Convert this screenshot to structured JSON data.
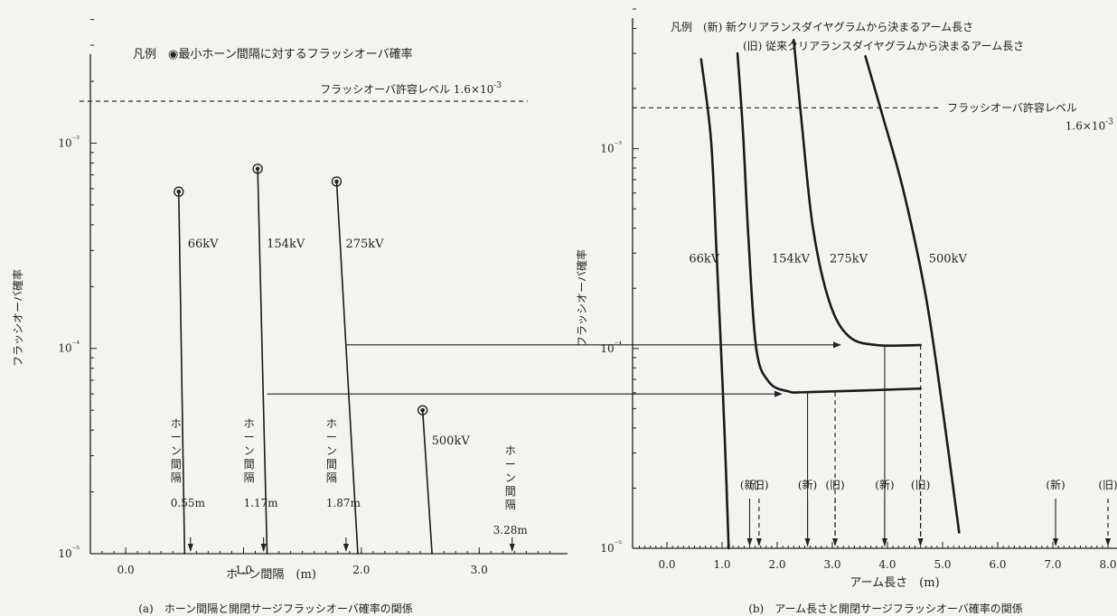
{
  "chart_data": [
    {
      "type": "scatter",
      "caption": "(a)　ホーン間隔と開閉サージフラッシオーバ確率の関係",
      "legend": "凡例　◉最小ホーン間隔に対するフラッシオーバ確率",
      "xlabel": "ホーン間隔　(m)",
      "ylabel": "フラッシオーバ確率",
      "xlim": [
        -0.3,
        3.75
      ],
      "ylim": [
        1e-05,
        0.0045
      ],
      "yscale": "log",
      "xticks": [
        "0.0",
        "1.0",
        "2.0",
        "3.0"
      ],
      "yticks": [
        "10⁻³",
        "10⁻⁴",
        "10⁻⁵"
      ],
      "threshold": {
        "label": "フラッシオーバ許容レベル 1.6×10⁻³",
        "value": 0.0016
      },
      "series": [
        {
          "name": "66kV",
          "peak": {
            "x": 0.45,
            "y": 0.00058
          },
          "base_x": 0.5,
          "min_gap": {
            "x": 0.55,
            "label": [
              "ホ",
              "ー",
              "ン",
              "間",
              "隔"
            ],
            "value": "0.55m"
          }
        },
        {
          "name": "154kV",
          "peak": {
            "x": 1.12,
            "y": 0.00075
          },
          "base_x": 1.2,
          "min_gap": {
            "x": 1.17,
            "label": [
              "ホ",
              "ー",
              "ン",
              "間",
              "隔"
            ],
            "value": "1.17m"
          }
        },
        {
          "name": "275kV",
          "peak": {
            "x": 1.79,
            "y": 0.00065
          },
          "base_x": 1.97,
          "min_gap": {
            "x": 1.87,
            "label": [
              "ホ",
              "ー",
              "ン",
              "間",
              "隔"
            ],
            "value": "1.87m"
          }
        },
        {
          "name": "500kV",
          "peak": {
            "x": 2.52,
            "y": 5e-05
          },
          "base_x": 2.6,
          "min_gap": {
            "x": 3.28,
            "label": [
              "ホ",
              "ー",
              "ン",
              "間",
              "隔"
            ],
            "value": "3.28m"
          }
        }
      ],
      "transfer_arrows": [
        {
          "from_x": 1.2,
          "y": 6e-05
        },
        {
          "from_x": 1.87,
          "y": 0.000104
        }
      ]
    },
    {
      "type": "line",
      "caption": "(b)　アーム長さと開閉サージフラッシオーバ確率の関係",
      "legend": [
        "凡例　(新) 新クリアランスダイヤグラムから決まるアーム長さ",
        "(旧) 従来クリアランスダイヤグラムから決まるアーム長さ"
      ],
      "xlabel": "アーム長さ　(m)",
      "ylabel": "フラッシオーバ確率",
      "xlim": [
        -0.6,
        8.2
      ],
      "ylim": [
        1e-05,
        0.005
      ],
      "yscale": "log",
      "xticks": [
        "0.0",
        "1.0",
        "2.0",
        "3.0",
        "4.0",
        "5.0",
        "6.0",
        "7.0",
        "8.0"
      ],
      "yticks": [
        "10⁻³",
        "10⁻⁴",
        "10⁻⁵"
      ],
      "threshold": {
        "label": [
          "フラッシオーバ許容レベル",
          "1.6×10⁻³"
        ],
        "value": 0.0016
      },
      "series": [
        {
          "name": "66kV",
          "points": [
            [
              0.62,
              0.0028
            ],
            [
              0.8,
              0.0011
            ],
            [
              0.9,
              0.0003
            ],
            [
              0.98,
              0.0001
            ],
            [
              1.05,
              3.5e-05
            ],
            [
              1.12,
              1e-05
            ]
          ]
        },
        {
          "name": "154kV",
          "points": [
            [
              1.28,
              0.003
            ],
            [
              1.38,
              0.0012
            ],
            [
              1.48,
              0.00035
            ],
            [
              1.62,
              0.0001
            ],
            [
              1.85,
              6.8e-05
            ],
            [
              2.2,
              6.1e-05
            ],
            [
              2.6,
              6.05e-05
            ],
            [
              4.6,
              6.3e-05
            ]
          ]
        },
        {
          "name": "275kV",
          "points": [
            [
              2.3,
              0.0035
            ],
            [
              2.45,
              0.0013
            ],
            [
              2.65,
              0.0004
            ],
            [
              2.95,
              0.00017
            ],
            [
              3.3,
              0.000115
            ],
            [
              3.8,
              0.000104
            ],
            [
              4.6,
              0.000104
            ]
          ]
        },
        {
          "name": "500kV",
          "points": [
            [
              3.6,
              0.0029
            ],
            [
              3.9,
              0.0015
            ],
            [
              4.3,
              0.0006
            ],
            [
              4.7,
              0.00018
            ],
            [
              5.0,
              5e-05
            ],
            [
              5.3,
              1.2e-05
            ]
          ]
        }
      ],
      "markers": [
        {
          "label": "(新)",
          "x": 1.5,
          "kind": "solid"
        },
        {
          "label": "(旧)",
          "x": 1.67,
          "kind": "dashed"
        },
        {
          "label": "(新)",
          "x": 2.55,
          "kind": "solid"
        },
        {
          "label": "(旧)",
          "x": 3.05,
          "kind": "dashed"
        },
        {
          "label": "(新)",
          "x": 3.95,
          "kind": "solid"
        },
        {
          "label": "(旧)",
          "x": 4.6,
          "kind": "dashed"
        },
        {
          "label": "(新)",
          "x": 7.05,
          "kind": "solid"
        },
        {
          "label": "(旧)",
          "x": 8.0,
          "kind": "dashed"
        }
      ],
      "drops": [
        {
          "x": 2.55,
          "y": 6.05e-05,
          "kind": "solid"
        },
        {
          "x": 3.05,
          "y": 6.05e-05,
          "kind": "dashed"
        },
        {
          "x": 3.95,
          "y": 0.000104,
          "kind": "solid"
        },
        {
          "x": 4.6,
          "y": 0.000104,
          "kind": "dashed"
        }
      ],
      "curve_labels": [
        {
          "name": "66kV",
          "x": 0.4,
          "y": 0.00027
        },
        {
          "name": "154kV",
          "x": 1.9,
          "y": 0.00027
        },
        {
          "name": "275kV",
          "x": 2.95,
          "y": 0.00027
        },
        {
          "name": "500kV",
          "x": 4.75,
          "y": 0.00027
        }
      ]
    }
  ]
}
